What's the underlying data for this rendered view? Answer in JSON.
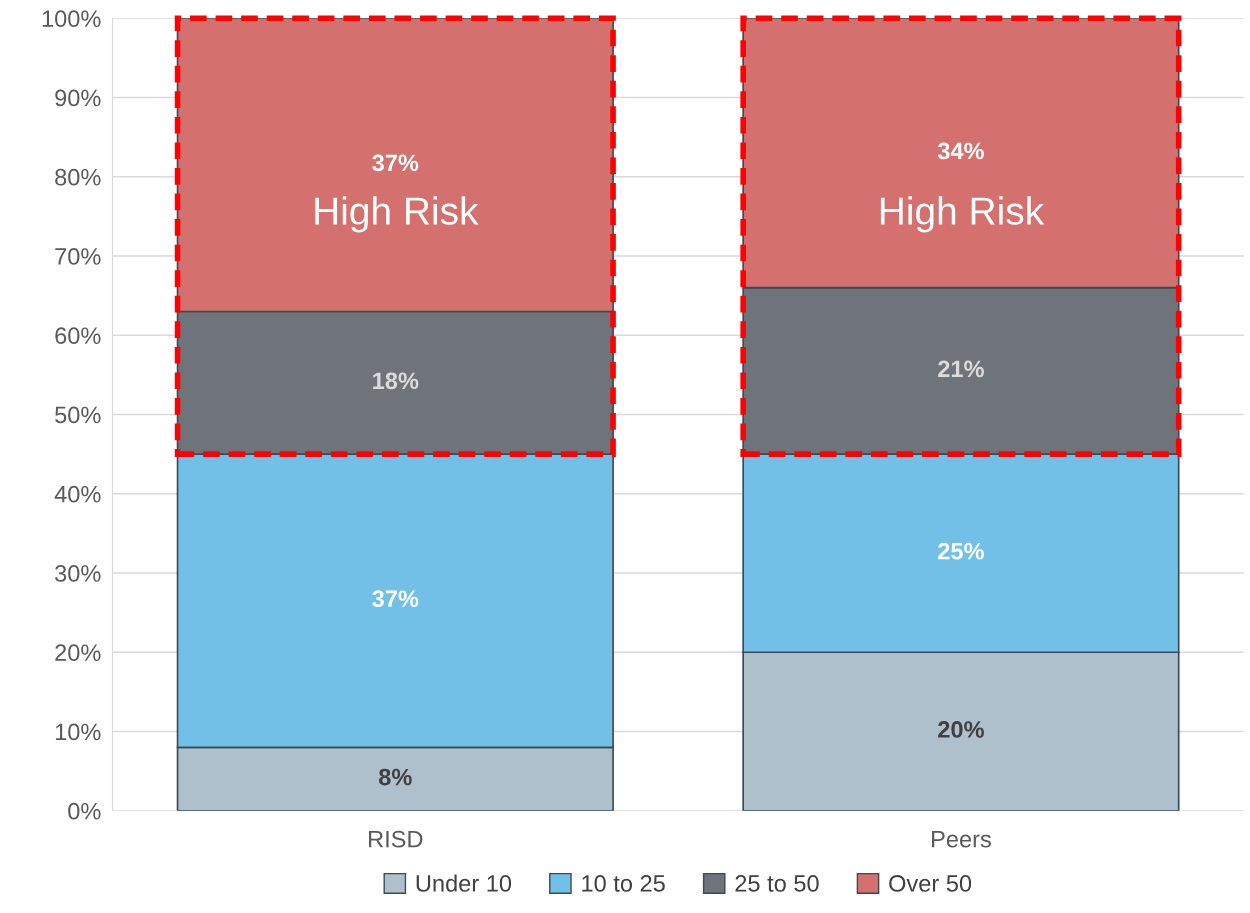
{
  "chart_data": {
    "type": "bar",
    "stacked": true,
    "categories": [
      "RISD",
      "Peers"
    ],
    "series": [
      {
        "name": "Under 10",
        "color": "#adc0cc",
        "values": [
          8,
          20
        ],
        "value_labels": [
          "8%",
          "20%"
        ]
      },
      {
        "name": "10 to 25",
        "color": "#72c0e8",
        "values": [
          37,
          25
        ],
        "value_labels": [
          "37%",
          "25%"
        ]
      },
      {
        "name": "25 to 50",
        "color": "#6f747b",
        "values": [
          18,
          21
        ],
        "value_labels": [
          "18%",
          "21%"
        ]
      },
      {
        "name": "Over 50",
        "color": "#d4706e",
        "values": [
          37,
          34
        ],
        "value_labels": [
          "37%",
          "34%"
        ]
      }
    ],
    "ylim": [
      0,
      100
    ],
    "yticks": [
      {
        "value": 0,
        "label": "0%"
      },
      {
        "value": 10,
        "label": "10%"
      },
      {
        "value": 20,
        "label": "20%"
      },
      {
        "value": 30,
        "label": "30%"
      },
      {
        "value": 40,
        "label": "40%"
      },
      {
        "value": 50,
        "label": "50%"
      },
      {
        "value": 60,
        "label": "60%"
      },
      {
        "value": 70,
        "label": "70%"
      },
      {
        "value": 80,
        "label": "80%"
      },
      {
        "value": 90,
        "label": "90%"
      },
      {
        "value": 100,
        "label": "100%"
      }
    ],
    "annotations": [
      "High Risk",
      "High Risk"
    ],
    "grid": "y",
    "legend": "bottom"
  }
}
